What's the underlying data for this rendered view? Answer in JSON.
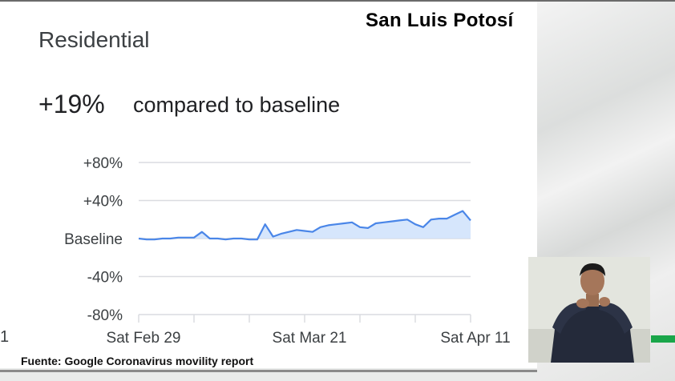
{
  "overlay": {
    "region": "San Luis Potosí",
    "source": "Fuente: Google Coronavirus movility report",
    "edge_label": "1"
  },
  "card": {
    "title": "Residential",
    "value": "+19%",
    "compared": "compared to baseline"
  },
  "colors": {
    "line": "#4a86e8",
    "fill": "#d2e3fc",
    "grid": "#dadce0",
    "text": "#3c4043",
    "accent_green": "#1aa64a"
  },
  "chart_data": {
    "type": "area",
    "title": "Residential",
    "xlabel": "",
    "ylabel": "",
    "ylim": [
      -80,
      80
    ],
    "yticks": [
      {
        "value": 80,
        "label": "+80%"
      },
      {
        "value": 40,
        "label": "+40%"
      },
      {
        "value": 0,
        "label": "Baseline"
      },
      {
        "value": -40,
        "label": "-40%"
      },
      {
        "value": -80,
        "label": "-80%"
      }
    ],
    "xticks": [
      {
        "index": 0,
        "label": "Sat Feb 29"
      },
      {
        "index": 21,
        "label": "Sat Mar 21"
      },
      {
        "index": 42,
        "label": "Sat Apr 11"
      }
    ],
    "grid": true,
    "legend": "none",
    "x": [
      "Feb 29",
      "Mar 1",
      "Mar 2",
      "Mar 3",
      "Mar 4",
      "Mar 5",
      "Mar 6",
      "Mar 7",
      "Mar 8",
      "Mar 9",
      "Mar 10",
      "Mar 11",
      "Mar 12",
      "Mar 13",
      "Mar 14",
      "Mar 15",
      "Mar 16",
      "Mar 17",
      "Mar 18",
      "Mar 19",
      "Mar 20",
      "Mar 21",
      "Mar 22",
      "Mar 23",
      "Mar 24",
      "Mar 25",
      "Mar 26",
      "Mar 27",
      "Mar 28",
      "Mar 29",
      "Mar 30",
      "Mar 31",
      "Apr 1",
      "Apr 2",
      "Apr 3",
      "Apr 4",
      "Apr 5",
      "Apr 6",
      "Apr 7",
      "Apr 8",
      "Apr 9",
      "Apr 10",
      "Apr 11"
    ],
    "values": [
      0,
      -1,
      -1,
      0,
      0,
      1,
      1,
      1,
      7,
      0,
      0,
      -1,
      0,
      0,
      -1,
      -1,
      15,
      2,
      5,
      7,
      9,
      8,
      7,
      12,
      14,
      15,
      16,
      17,
      12,
      11,
      16,
      17,
      18,
      19,
      20,
      15,
      12,
      20,
      21,
      21,
      25,
      29,
      19
    ]
  }
}
